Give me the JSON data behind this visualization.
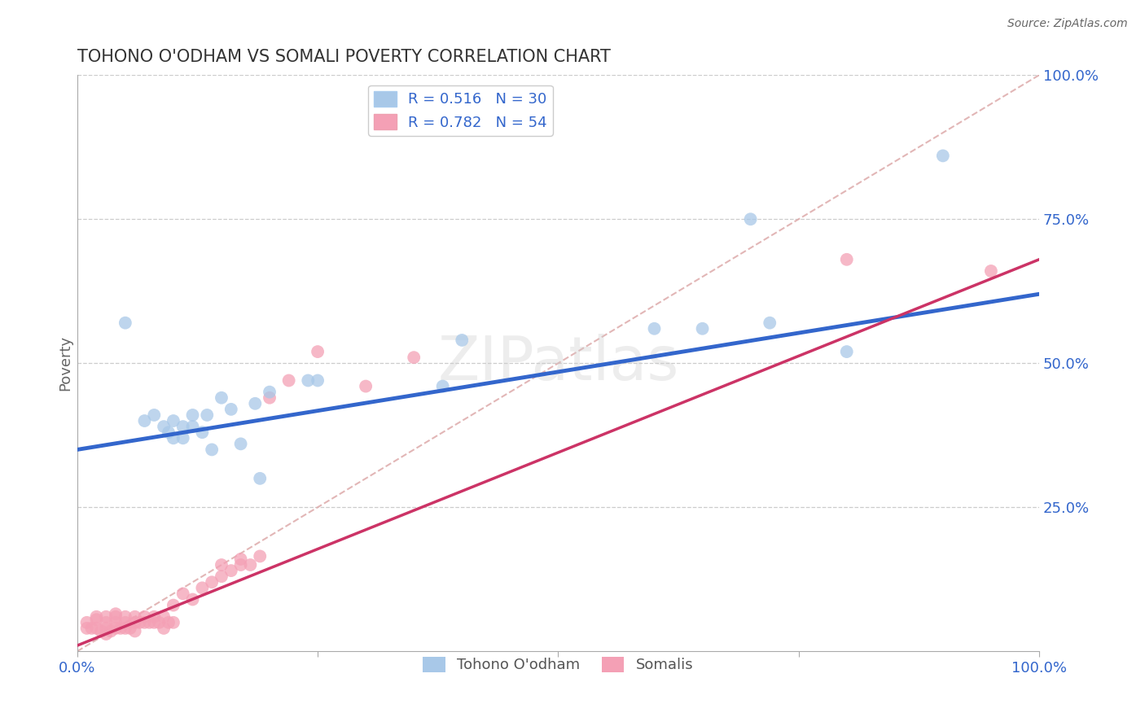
{
  "title": "TOHONO O'ODHAM VS SOMALI POVERTY CORRELATION CHART",
  "source": "Source: ZipAtlas.com",
  "ylabel": "Poverty",
  "xlim": [
    0.0,
    1.0
  ],
  "ylim": [
    0.0,
    1.0
  ],
  "xticks": [
    0.0,
    0.25,
    0.5,
    0.75,
    1.0
  ],
  "yticks": [
    0.25,
    0.5,
    0.75,
    1.0
  ],
  "xticklabels": [
    "0.0%",
    "",
    "",
    "",
    "100.0%"
  ],
  "yticklabels_right": [
    "25.0%",
    "50.0%",
    "75.0%",
    "100.0%"
  ],
  "grid_color": "#cccccc",
  "background_color": "#ffffff",
  "blue_R": 0.516,
  "blue_N": 30,
  "pink_R": 0.782,
  "pink_N": 54,
  "blue_color": "#a8c8e8",
  "pink_color": "#f4a0b5",
  "blue_line_color": "#3366cc",
  "pink_line_color": "#cc3366",
  "diag_line_color": "#ddaaaa",
  "legend_label_blue": "Tohono O'odham",
  "legend_label_pink": "Somalis",
  "blue_scatter_x": [
    0.05,
    0.07,
    0.08,
    0.09,
    0.095,
    0.1,
    0.1,
    0.11,
    0.11,
    0.12,
    0.12,
    0.13,
    0.135,
    0.14,
    0.15,
    0.16,
    0.17,
    0.185,
    0.19,
    0.2,
    0.24,
    0.25,
    0.38,
    0.4,
    0.6,
    0.65,
    0.7,
    0.72,
    0.8,
    0.9
  ],
  "blue_scatter_y": [
    0.57,
    0.4,
    0.41,
    0.39,
    0.38,
    0.37,
    0.4,
    0.37,
    0.39,
    0.41,
    0.39,
    0.38,
    0.41,
    0.35,
    0.44,
    0.42,
    0.36,
    0.43,
    0.3,
    0.45,
    0.47,
    0.47,
    0.46,
    0.54,
    0.56,
    0.56,
    0.75,
    0.57,
    0.52,
    0.86
  ],
  "pink_scatter_x": [
    0.01,
    0.01,
    0.015,
    0.02,
    0.02,
    0.02,
    0.025,
    0.03,
    0.03,
    0.03,
    0.03,
    0.035,
    0.04,
    0.04,
    0.04,
    0.04,
    0.045,
    0.05,
    0.05,
    0.05,
    0.055,
    0.06,
    0.06,
    0.06,
    0.065,
    0.07,
    0.07,
    0.075,
    0.08,
    0.08,
    0.085,
    0.09,
    0.09,
    0.095,
    0.1,
    0.1,
    0.11,
    0.12,
    0.13,
    0.14,
    0.15,
    0.15,
    0.16,
    0.17,
    0.17,
    0.18,
    0.19,
    0.2,
    0.22,
    0.25,
    0.3,
    0.35,
    0.8,
    0.95
  ],
  "pink_scatter_y": [
    0.04,
    0.05,
    0.04,
    0.04,
    0.055,
    0.06,
    0.035,
    0.03,
    0.04,
    0.05,
    0.06,
    0.035,
    0.04,
    0.05,
    0.06,
    0.065,
    0.04,
    0.04,
    0.05,
    0.06,
    0.04,
    0.035,
    0.05,
    0.06,
    0.05,
    0.05,
    0.06,
    0.05,
    0.05,
    0.06,
    0.05,
    0.04,
    0.06,
    0.05,
    0.05,
    0.08,
    0.1,
    0.09,
    0.11,
    0.12,
    0.13,
    0.15,
    0.14,
    0.15,
    0.16,
    0.15,
    0.165,
    0.44,
    0.47,
    0.52,
    0.46,
    0.51,
    0.68,
    0.66
  ],
  "blue_line_x0": 0.0,
  "blue_line_x1": 1.0,
  "blue_line_y0": 0.35,
  "blue_line_y1": 0.62,
  "pink_line_x0": 0.0,
  "pink_line_x1": 1.0,
  "pink_line_y0": 0.01,
  "pink_line_y1": 0.68,
  "diag_line_x": [
    0.0,
    1.0
  ],
  "diag_line_y": [
    0.0,
    1.0
  ]
}
